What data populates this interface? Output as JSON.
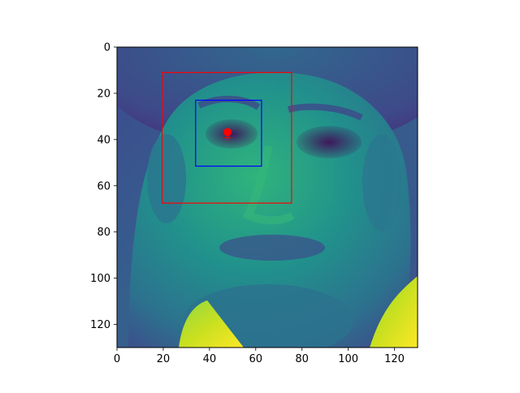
{
  "plot": {
    "image": {
      "description": "grayscale face image rendered with a viridis colormap",
      "extent": {
        "x": [
          0,
          130
        ],
        "y": [
          0,
          130
        ]
      },
      "colormap": "viridis"
    },
    "x_axis": {
      "range": [
        0,
        130
      ],
      "ticks": [
        0,
        20,
        40,
        60,
        80,
        100,
        120
      ],
      "tick_labels": [
        "0",
        "20",
        "40",
        "60",
        "80",
        "100",
        "120"
      ]
    },
    "y_axis": {
      "range": [
        0,
        130
      ],
      "inverted": true,
      "ticks": [
        0,
        20,
        40,
        60,
        80,
        100,
        120
      ],
      "tick_labels": [
        "0",
        "20",
        "40",
        "60",
        "80",
        "100",
        "120"
      ]
    },
    "overlays": {
      "red_box": {
        "x0": 19.5,
        "y0": 11,
        "x1": 75.5,
        "y1": 67.5,
        "color": "#ff0000"
      },
      "blue_box": {
        "x0": 34,
        "y0": 23,
        "x1": 62.5,
        "y1": 51.5,
        "color": "#0000ff"
      },
      "red_point": {
        "x": 47.8,
        "y": 36.8,
        "color": "#ff0000"
      },
      "red_plus": {
        "x": 47.8,
        "y": 39.2,
        "color": "#ff0000"
      }
    }
  }
}
